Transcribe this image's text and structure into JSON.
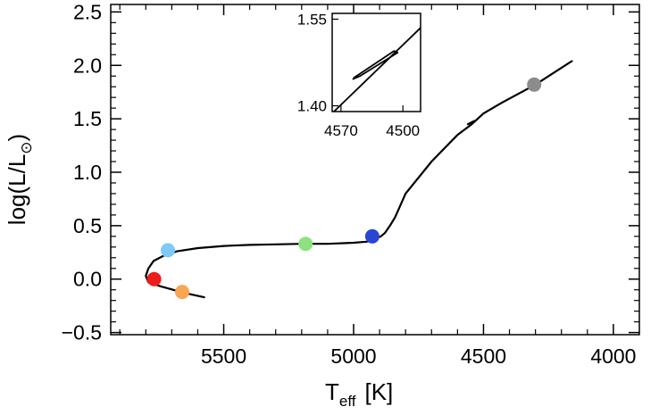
{
  "chart_data": {
    "type": "line",
    "xlabel": "T",
    "xlabel_subscript": "eff",
    "xlabel_unit": "[K]",
    "ylabel": "log(L/L",
    "ylabel_subscript": "⊙",
    "ylabel_close": ")",
    "xlim": [
      5935,
      3900
    ],
    "ylim": [
      -0.52,
      2.57
    ],
    "x_ticks": [
      5500,
      5000,
      4500,
      4000
    ],
    "x_tick_labels": [
      "5500",
      "5000",
      "4500",
      "4000"
    ],
    "y_ticks": [
      -0.5,
      0.0,
      0.5,
      1.0,
      1.5,
      2.0,
      2.5
    ],
    "y_tick_labels": [
      "−0.5",
      "0.0",
      "0.5",
      "1.0",
      "1.5",
      "2.0",
      "2.5"
    ],
    "grid": false,
    "series": [
      {
        "color": "#000000",
        "x": [
          5575,
          5650,
          5740,
          5790,
          5800,
          5790,
          5770,
          5730,
          5680,
          5600,
          5500,
          5400,
          5300,
          5200,
          5100,
          5000,
          4950,
          4915,
          4895,
          4880,
          4860,
          4840,
          4800,
          4700,
          4600,
          4545,
          4500,
          4430,
          4300,
          4160
        ],
        "y": [
          -0.17,
          -0.13,
          -0.07,
          -0.03,
          0.03,
          0.1,
          0.17,
          0.22,
          0.26,
          0.29,
          0.31,
          0.32,
          0.325,
          0.33,
          0.33,
          0.34,
          0.35,
          0.38,
          0.4,
          0.43,
          0.5,
          0.58,
          0.8,
          1.1,
          1.35,
          1.45,
          1.55,
          1.65,
          1.82,
          2.04
        ]
      },
      {
        "color": "#000000",
        "x": [
          4560,
          4535
        ],
        "y": [
          1.45,
          1.48
        ]
      }
    ],
    "markers": [
      {
        "x": 5768,
        "y": 0.0,
        "color": "#ee1c1c"
      },
      {
        "x": 5660,
        "y": -0.12,
        "color": "#f9a552"
      },
      {
        "x": 5715,
        "y": 0.27,
        "color": "#7ec9f5"
      },
      {
        "x": 5185,
        "y": 0.33,
        "color": "#8fe07f"
      },
      {
        "x": 4928,
        "y": 0.4,
        "color": "#2a45d4"
      },
      {
        "x": 4305,
        "y": 1.82,
        "color": "#8c8c8c"
      }
    ],
    "inset": {
      "xlim": [
        4580,
        4480
      ],
      "ylim": [
        1.39,
        1.56
      ],
      "x_ticks": [
        4570,
        4500
      ],
      "x_tick_labels": [
        "4570",
        "4500"
      ],
      "y_ticks": [
        1.4,
        1.55
      ],
      "y_tick_labels": [
        "1.40",
        "1.55"
      ],
      "series": [
        {
          "x": [
            4578,
            4480
          ],
          "y": [
            1.39,
            1.535
          ]
        },
        {
          "x": [
            4556,
            4510,
            4506,
            4548,
            4557
          ],
          "y": [
            1.448,
            1.495,
            1.492,
            1.452,
            1.446
          ]
        }
      ]
    }
  }
}
